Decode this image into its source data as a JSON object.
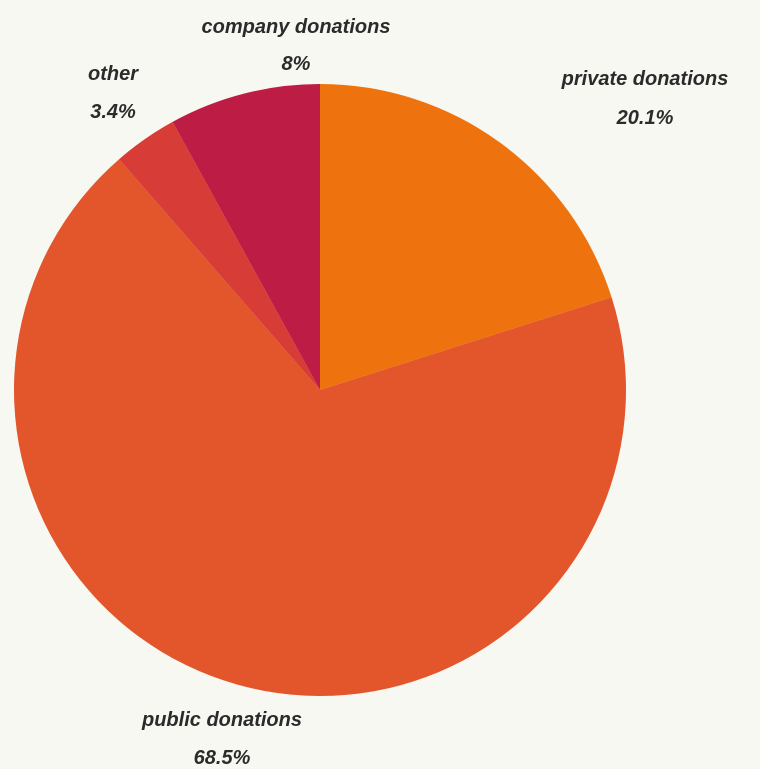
{
  "chart_data": {
    "type": "pie",
    "title": "",
    "start_angle_deg": 0,
    "direction": "clockwise",
    "slices": [
      {
        "label": "private donations",
        "value": 20.1,
        "value_label": "20.1%",
        "color": "#ee730f"
      },
      {
        "label": "public donations",
        "value": 68.5,
        "value_label": "68.5%",
        "color": "#e3562c"
      },
      {
        "label": "other",
        "value": 3.4,
        "value_label": "3.4%",
        "color": "#d73c36"
      },
      {
        "label": "company donations",
        "value": 8.0,
        "value_label": "8%",
        "color": "#bd1c45"
      }
    ],
    "legend": "none",
    "background": "#f8f8f2"
  }
}
